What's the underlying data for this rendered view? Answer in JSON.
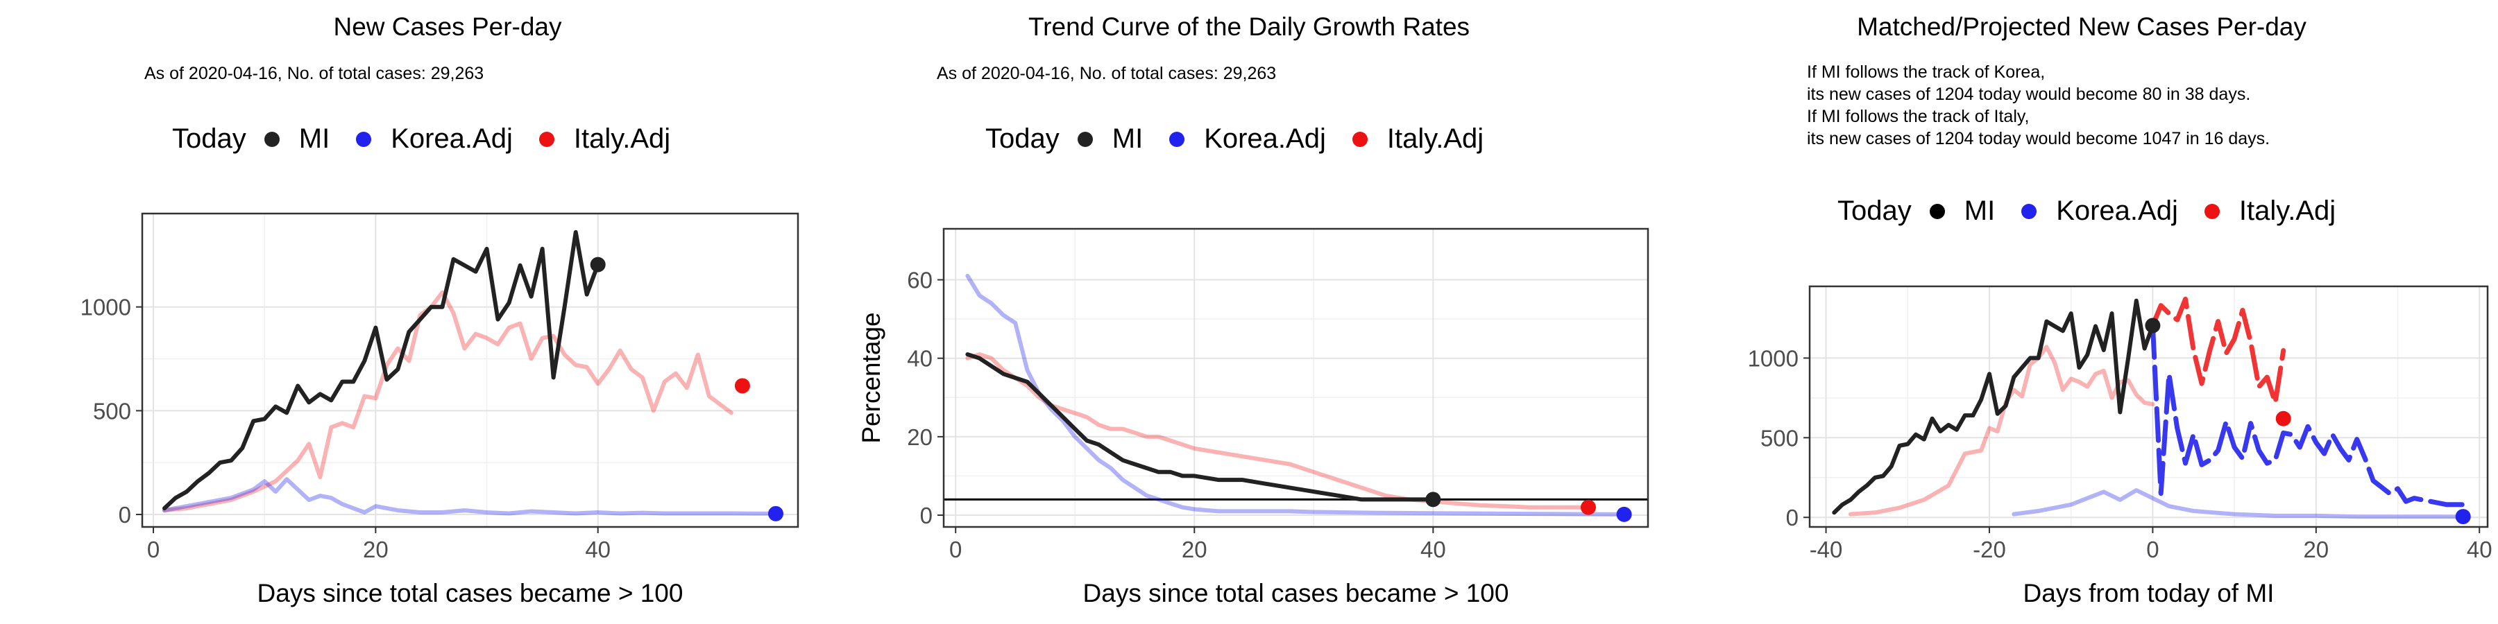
{
  "colors": {
    "MI": "#222222",
    "Korea.Adj": "#2222ee",
    "Italy.Adj": "#ee1111"
  },
  "legend": {
    "title": "Today",
    "items": [
      "MI",
      "Korea.Adj",
      "Italy.Adj"
    ]
  },
  "panels": [
    {
      "title": "New Cases Per-day",
      "subtitle": [
        "As of 2020-04-16, No. of total cases: 29,263"
      ],
      "xlabel": "Days since total cases became > 100",
      "ylabel": ""
    },
    {
      "title": "Trend Curve of the Daily Growth Rates",
      "subtitle": [
        "As of 2020-04-16, No. of total cases: 29,263"
      ],
      "xlabel": "Days since total cases became > 100",
      "ylabel": "Percentage"
    },
    {
      "title": "Matched/Projected New Cases Per-day",
      "subtitle": [
        "If MI follows the track of Korea,",
        "its new cases of 1204 today would become 80 in 38 days.",
        "If MI follows the track of Italy,",
        "its new cases of 1204 today would become 1047 in 16 days."
      ],
      "xlabel": "Days from today of MI",
      "ylabel": ""
    }
  ],
  "chart_data": [
    {
      "type": "line",
      "title": "New Cases Per-day",
      "xlabel": "Days since total cases became > 100",
      "ylabel": "",
      "xlim": [
        -1,
        58
      ],
      "ylim": [
        -60,
        1450
      ],
      "xticks": [
        0,
        20,
        40
      ],
      "yticks": [
        0,
        500,
        1000
      ],
      "grid": true,
      "legend_position": "top",
      "series": [
        {
          "name": "MI",
          "x": [
            1,
            2,
            3,
            4,
            5,
            6,
            7,
            8,
            9,
            10,
            11,
            12,
            13,
            14,
            15,
            16,
            17,
            18,
            19,
            20,
            21,
            22,
            23,
            24,
            25,
            26,
            27,
            28,
            29,
            30,
            31,
            32,
            33,
            34,
            35,
            36,
            37,
            38,
            39,
            40
          ],
          "y": [
            30,
            80,
            110,
            160,
            200,
            250,
            260,
            320,
            450,
            460,
            520,
            490,
            620,
            540,
            580,
            550,
            640,
            640,
            740,
            900,
            650,
            700,
            880,
            940,
            1000,
            1000,
            1230,
            1200,
            1170,
            1280,
            940,
            1020,
            1200,
            1050,
            1280,
            660,
            1000,
            1360,
            1060,
            1204
          ],
          "today": [
            40,
            1204
          ]
        },
        {
          "name": "Korea.Adj",
          "x": [
            1,
            3,
            5,
            7,
            9,
            10,
            11,
            12,
            13,
            14,
            15,
            16,
            17,
            18,
            19,
            20,
            22,
            24,
            26,
            28,
            30,
            32,
            34,
            36,
            38,
            40,
            42,
            44,
            46,
            48,
            50,
            52,
            54,
            56
          ],
          "y": [
            20,
            40,
            60,
            80,
            120,
            160,
            110,
            170,
            120,
            70,
            90,
            80,
            50,
            30,
            10,
            40,
            20,
            10,
            10,
            20,
            10,
            5,
            15,
            10,
            5,
            10,
            5,
            8,
            5,
            5,
            5,
            5,
            4,
            4
          ],
          "today": [
            56,
            4
          ]
        },
        {
          "name": "Italy.Adj",
          "x": [
            1,
            3,
            5,
            7,
            9,
            11,
            13,
            14,
            15,
            16,
            17,
            18,
            19,
            20,
            21,
            22,
            23,
            24,
            25,
            26,
            27,
            28,
            29,
            30,
            31,
            32,
            33,
            34,
            35,
            36,
            37,
            38,
            39,
            40,
            41,
            42,
            43,
            44,
            45,
            46,
            47,
            48,
            49,
            50,
            51,
            52
          ],
          "y": [
            20,
            30,
            50,
            70,
            110,
            160,
            260,
            340,
            180,
            420,
            440,
            420,
            570,
            560,
            720,
            800,
            740,
            960,
            1000,
            1070,
            970,
            800,
            870,
            850,
            820,
            900,
            920,
            750,
            850,
            860,
            770,
            720,
            710,
            630,
            700,
            790,
            700,
            660,
            500,
            640,
            680,
            610,
            770,
            570,
            530,
            490
          ],
          "today": [
            53,
            620
          ]
        }
      ]
    },
    {
      "type": "line",
      "title": "Trend Curve of the Daily Growth Rates",
      "xlabel": "Days since total cases became > 100",
      "ylabel": "Percentage",
      "xlim": [
        -1,
        58
      ],
      "ylim": [
        -3,
        73
      ],
      "xticks": [
        0,
        20,
        40
      ],
      "yticks": [
        0,
        20,
        40,
        60
      ],
      "grid": true,
      "hline": 4,
      "legend_position": "top",
      "series": [
        {
          "name": "MI",
          "x": [
            1,
            2,
            3,
            4,
            5,
            6,
            7,
            8,
            9,
            10,
            11,
            12,
            13,
            14,
            15,
            16,
            17,
            18,
            19,
            20,
            22,
            24,
            26,
            28,
            30,
            32,
            34,
            36,
            38,
            40
          ],
          "y": [
            41,
            40,
            38,
            36,
            35,
            34,
            31,
            28,
            25,
            22,
            19,
            18,
            16,
            14,
            13,
            12,
            11,
            11,
            10,
            10,
            9,
            9,
            8,
            7,
            6,
            5,
            4,
            4,
            4,
            4
          ],
          "today": [
            40,
            4
          ]
        },
        {
          "name": "Korea.Adj",
          "x": [
            1,
            2,
            3,
            4,
            5,
            6,
            7,
            8,
            9,
            10,
            11,
            12,
            13,
            14,
            15,
            16,
            17,
            18,
            19,
            20,
            22,
            24,
            26,
            28,
            30,
            35,
            40,
            45,
            50,
            56
          ],
          "y": [
            61,
            56,
            54,
            51,
            49,
            37,
            31,
            27,
            24,
            20,
            17,
            14,
            12,
            9,
            7,
            5,
            4,
            3,
            2,
            1.5,
            1,
            1,
            1,
            1,
            0.8,
            0.6,
            0.5,
            0.4,
            0.3,
            0.2
          ],
          "today": [
            56,
            0.2
          ]
        },
        {
          "name": "Italy.Adj",
          "x": [
            1,
            2,
            3,
            4,
            5,
            6,
            7,
            8,
            9,
            10,
            11,
            12,
            13,
            14,
            15,
            16,
            17,
            18,
            19,
            20,
            22,
            24,
            26,
            28,
            30,
            32,
            34,
            36,
            38,
            40,
            42,
            44,
            46,
            48,
            50,
            53
          ],
          "y": [
            40,
            41,
            40,
            37,
            35,
            33,
            30,
            28,
            27,
            26,
            25,
            23,
            22,
            22,
            21,
            20,
            20,
            19,
            18,
            17,
            16,
            15,
            14,
            13,
            11,
            9,
            7,
            5,
            4,
            3.5,
            3,
            2.5,
            2.3,
            2,
            2,
            2
          ],
          "today": [
            53,
            2
          ]
        }
      ]
    },
    {
      "type": "line",
      "title": "Matched/Projected New Cases Per-day",
      "xlabel": "Days from today of MI",
      "ylabel": "",
      "xlim": [
        -42,
        41
      ],
      "ylim": [
        -60,
        1450
      ],
      "xticks": [
        -40,
        -20,
        0,
        20,
        40
      ],
      "yticks": [
        0,
        500,
        1000
      ],
      "grid": true,
      "legend_position": "top",
      "series": [
        {
          "name": "MI",
          "x": [
            -39,
            -38,
            -37,
            -36,
            -35,
            -34,
            -33,
            -32,
            -31,
            -30,
            -29,
            -28,
            -27,
            -26,
            -25,
            -24,
            -23,
            -22,
            -21,
            -20,
            -19,
            -18,
            -17,
            -16,
            -15,
            -14,
            -13,
            -12,
            -11,
            -10,
            -9,
            -8,
            -7,
            -6,
            -5,
            -4,
            -3,
            -2,
            -1,
            0
          ],
          "y": [
            30,
            80,
            110,
            160,
            200,
            250,
            260,
            320,
            450,
            460,
            520,
            490,
            620,
            540,
            580,
            550,
            640,
            640,
            740,
            900,
            650,
            700,
            880,
            940,
            1000,
            1000,
            1230,
            1200,
            1170,
            1280,
            940,
            1020,
            1200,
            1050,
            1280,
            660,
            1000,
            1360,
            1060,
            1204
          ],
          "today": [
            0,
            1204
          ]
        },
        {
          "name": "Korea.Adj (history)",
          "x": [
            -17,
            -14,
            -12,
            -10,
            -8,
            -6,
            -4,
            -2,
            0,
            2,
            5,
            10,
            15,
            20,
            25,
            30,
            35,
            38
          ],
          "y": [
            20,
            40,
            60,
            80,
            120,
            160,
            110,
            170,
            120,
            70,
            40,
            20,
            10,
            10,
            5,
            5,
            5,
            4
          ]
        },
        {
          "name": "Italy.Adj (history)",
          "x": [
            -37,
            -34,
            -31,
            -28,
            -25,
            -23,
            -21,
            -20,
            -19,
            -18,
            -17,
            -16,
            -15,
            -14,
            -13,
            -12,
            -11,
            -10,
            -9,
            -8,
            -7,
            -6,
            -5,
            -4,
            -3,
            -2,
            -1,
            0
          ],
          "y": [
            20,
            30,
            60,
            110,
            200,
            400,
            420,
            560,
            540,
            720,
            800,
            760,
            960,
            1000,
            1070,
            970,
            800,
            870,
            850,
            820,
            900,
            920,
            750,
            850,
            860,
            770,
            720,
            710
          ]
        },
        {
          "name": "Korea.Adj (projected)",
          "x": [
            0,
            1,
            2,
            3,
            4,
            5,
            6,
            7,
            8,
            9,
            10,
            11,
            12,
            13,
            14,
            15,
            16,
            17,
            18,
            19,
            20,
            21,
            22,
            23,
            24,
            25,
            26,
            27,
            28,
            29,
            30,
            31,
            32,
            33,
            34,
            35,
            36,
            37,
            38
          ],
          "y": [
            1204,
            150,
            900,
            560,
            340,
            520,
            330,
            360,
            420,
            600,
            440,
            370,
            590,
            420,
            340,
            360,
            530,
            520,
            440,
            570,
            470,
            400,
            520,
            430,
            360,
            490,
            370,
            230,
            190,
            150,
            180,
            100,
            120,
            110,
            100,
            90,
            80,
            80,
            80
          ],
          "today": [
            38,
            5
          ]
        },
        {
          "name": "Italy.Adj (projected)",
          "x": [
            0,
            1,
            2,
            3,
            4,
            5,
            6,
            7,
            8,
            9,
            10,
            11,
            12,
            13,
            14,
            15,
            16
          ],
          "y": [
            1204,
            1330,
            1280,
            1240,
            1370,
            1050,
            840,
            1050,
            1230,
            1030,
            1120,
            1300,
            1100,
            820,
            880,
            720,
            1047
          ],
          "today": [
            16,
            620
          ]
        }
      ]
    }
  ]
}
